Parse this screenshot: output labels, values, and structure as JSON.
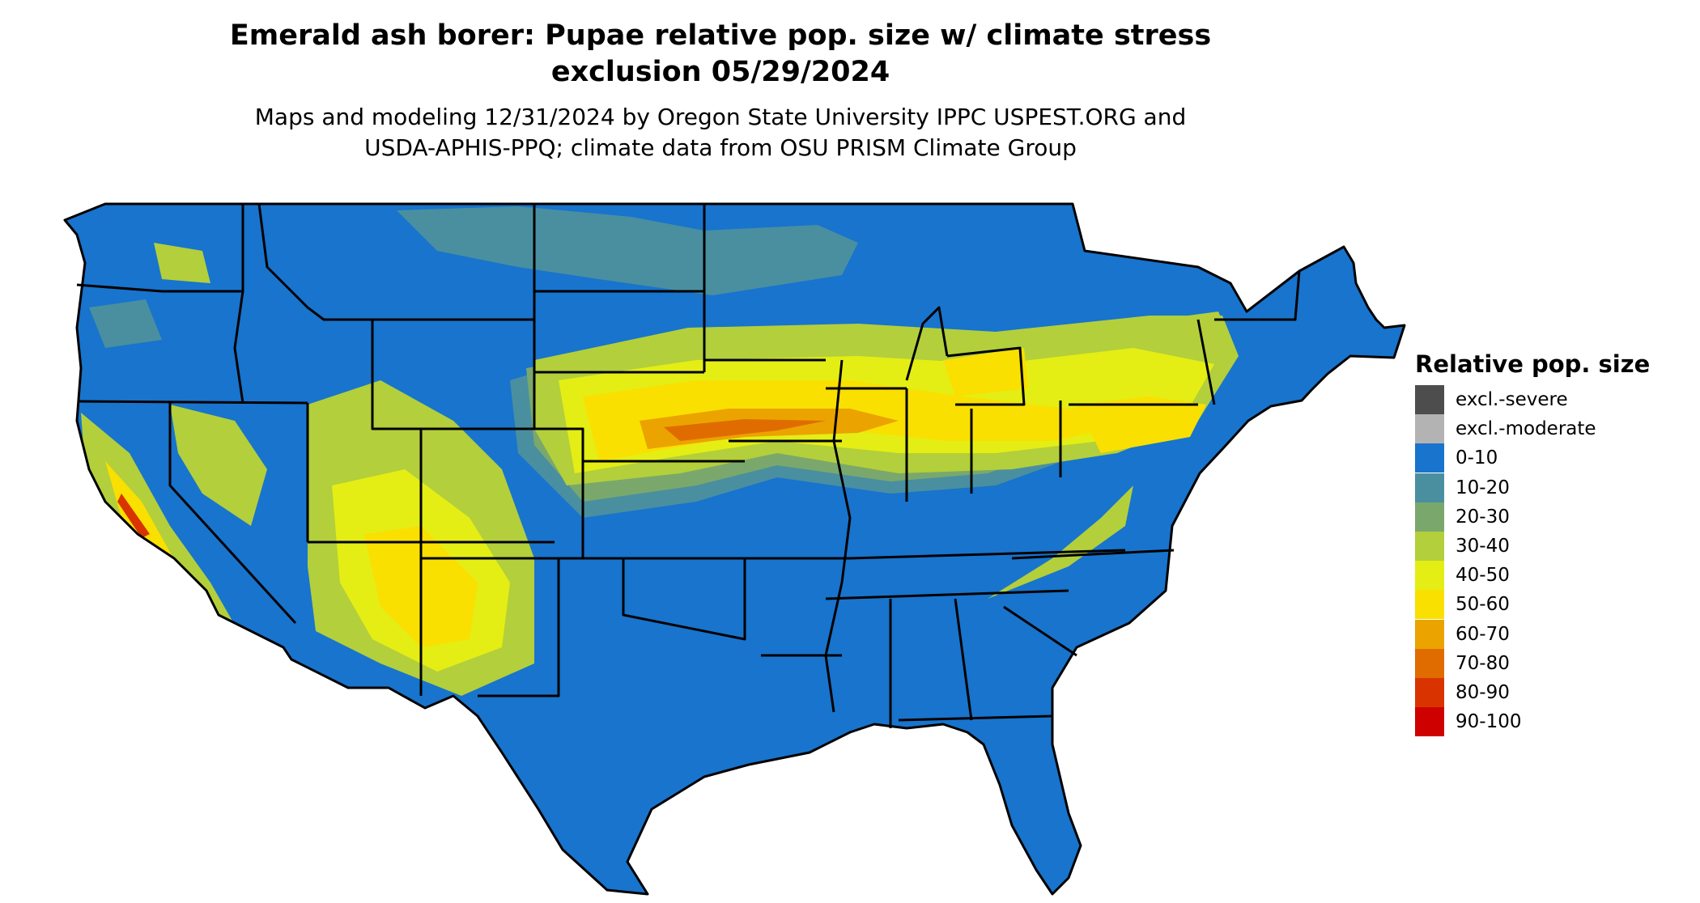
{
  "title_line1": "Emerald ash borer: Pupae relative pop. size w/ climate stress",
  "title_line2": "exclusion 05/29/2024",
  "subtitle_line1": "Maps and modeling 12/31/2024 by Oregon State University IPPC USPEST.ORG and",
  "subtitle_line2": "USDA-APHIS-PPQ; climate data from OSU PRISM Climate Group",
  "legend": {
    "title": "Relative pop. size",
    "items": [
      {
        "label": "excl.-severe",
        "color": "#4d4d4d"
      },
      {
        "label": "excl.-moderate",
        "color": "#b3b3b3"
      },
      {
        "label": "0-10",
        "color": "#1874cd"
      },
      {
        "label": "10-20",
        "color": "#4a8fa0"
      },
      {
        "label": "20-30",
        "color": "#7aa86c"
      },
      {
        "label": "30-40",
        "color": "#b3cf3b"
      },
      {
        "label": "40-50",
        "color": "#e4ee14"
      },
      {
        "label": "50-60",
        "color": "#f9e000"
      },
      {
        "label": "60-70",
        "color": "#eba300"
      },
      {
        "label": "70-80",
        "color": "#e06c00"
      },
      {
        "label": "80-90",
        "color": "#d93400"
      },
      {
        "label": "90-100",
        "color": "#cf0000"
      }
    ]
  },
  "map_region": "Contiguous United States"
}
